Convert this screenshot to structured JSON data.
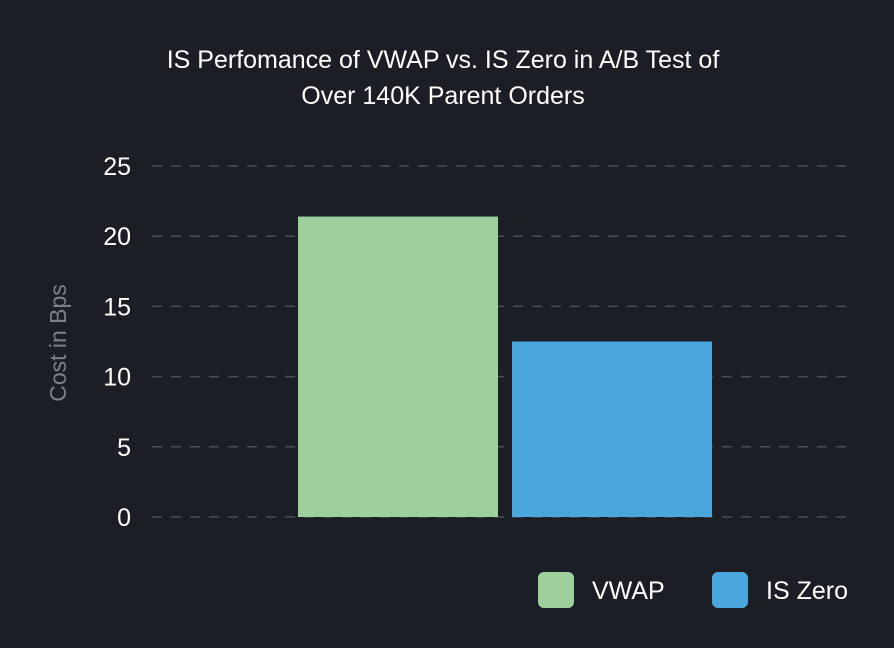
{
  "chart_data": {
    "type": "bar",
    "title_lines": [
      "IS Perfomance of VWAP vs. IS Zero in A/B Test of",
      "Over 140K Parent Orders"
    ],
    "xlabel": "",
    "ylabel": "Cost in Bps",
    "ylim": [
      0,
      25
    ],
    "yticks": [
      "0",
      "5",
      "10",
      "15",
      "20",
      "25"
    ],
    "grid": true,
    "legend_position": "bottom-right",
    "series": [
      {
        "name": "VWAP",
        "value": 21.4,
        "color": "#9dd09c"
      },
      {
        "name": "IS Zero",
        "value": 12.5,
        "color": "#4aa7de"
      }
    ]
  }
}
